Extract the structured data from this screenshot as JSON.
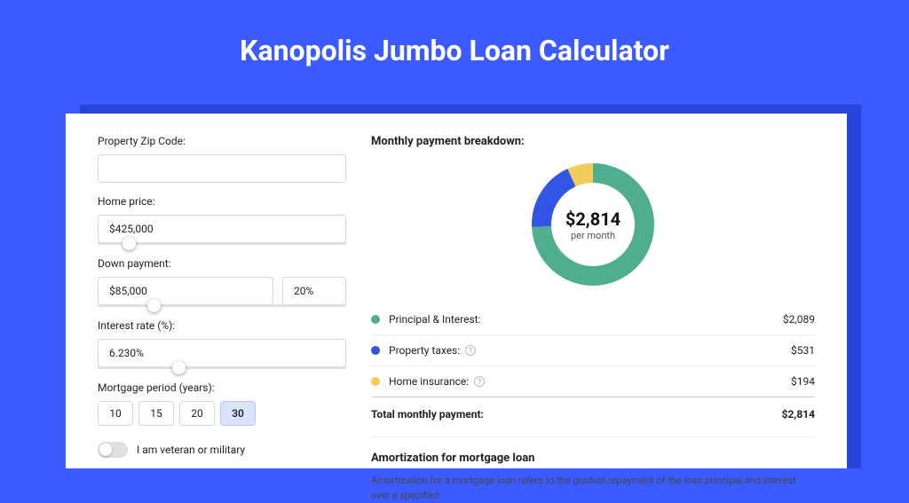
{
  "page": {
    "title": "Kanopolis Jumbo Loan Calculator",
    "background_color": "#3b5bff",
    "panel_shadow_color": "#2843d8",
    "panel_bg": "#ffffff"
  },
  "form": {
    "zip": {
      "label": "Property Zip Code:",
      "value": ""
    },
    "home_price": {
      "label": "Home price:",
      "value": "$425,000",
      "slider_pct": 10
    },
    "down_payment": {
      "label": "Down payment:",
      "value": "$85,000",
      "pct": "20%",
      "slider_pct": 20
    },
    "interest_rate": {
      "label": "Interest rate (%):",
      "value": "6.230%",
      "slider_pct": 30
    },
    "mortgage_period": {
      "label": "Mortgage period (years):",
      "options": [
        "10",
        "15",
        "20",
        "30"
      ],
      "selected": "30"
    },
    "veteran": {
      "label": "I am veteran or military",
      "checked": false
    }
  },
  "breakdown": {
    "title": "Monthly payment breakdown:",
    "center_amount": "$2,814",
    "center_sub": "per month",
    "donut": {
      "slices": [
        {
          "key": "principal_interest",
          "value": 2089,
          "color": "#4fae8c"
        },
        {
          "key": "property_taxes",
          "value": 531,
          "color": "#3355e6"
        },
        {
          "key": "home_insurance",
          "value": 194,
          "color": "#f2cd5c"
        }
      ],
      "stroke_width": 22,
      "radius": 58
    },
    "items": [
      {
        "label": "Principal & Interest:",
        "value": "$2,089",
        "color": "#4fae8c",
        "info": false
      },
      {
        "label": "Property taxes:",
        "value": "$531",
        "color": "#3355e6",
        "info": true
      },
      {
        "label": "Home insurance:",
        "value": "$194",
        "color": "#f2cd5c",
        "info": true
      }
    ],
    "total": {
      "label": "Total monthly payment:",
      "value": "$2,814"
    }
  },
  "amortization": {
    "title": "Amortization for mortgage loan",
    "text": "Amortization for a mortgage loan refers to the gradual repayment of the loan principal and interest over a specified"
  }
}
